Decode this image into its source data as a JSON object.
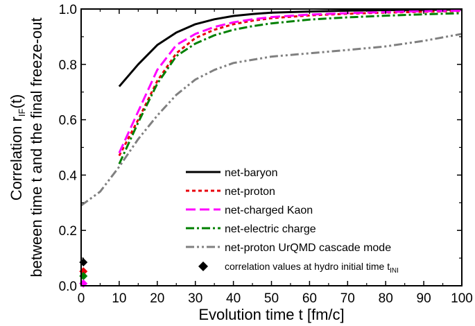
{
  "chart_data": {
    "type": "line",
    "xlabel": "Evolution time t [fm/c]",
    "ylabel_line1": "Correlation r",
    "ylabel_sub": "IF",
    "ylabel_line1_end": "(t)",
    "ylabel_line2": "between time t and the final freeze-out",
    "xlim": [
      0,
      100
    ],
    "ylim": [
      0,
      1.0
    ],
    "xticks": [
      0,
      10,
      20,
      30,
      40,
      50,
      60,
      70,
      80,
      90,
      100
    ],
    "yticks": [
      0.0,
      0.2,
      0.4,
      0.6,
      0.8,
      1.0
    ],
    "xtick_labels": [
      "0",
      "10",
      "20",
      "30",
      "40",
      "50",
      "60",
      "70",
      "80",
      "90",
      "100"
    ],
    "ytick_labels": [
      "0.0",
      "0.2",
      "0.4",
      "0.6",
      "0.8",
      "1.0"
    ],
    "legend_position": "lower-right",
    "series": [
      {
        "name": "net-baryon",
        "color": "#000000",
        "dash": "solid",
        "x": [
          10,
          15,
          20,
          25,
          30,
          35,
          40,
          45,
          50,
          60,
          70,
          80,
          90,
          100
        ],
        "y": [
          0.72,
          0.8,
          0.87,
          0.915,
          0.945,
          0.963,
          0.975,
          0.982,
          0.987,
          0.991,
          0.994,
          0.996,
          0.997,
          0.998
        ]
      },
      {
        "name": "net-proton",
        "color": "#e8000b",
        "dash": "dash",
        "x": [
          10,
          15,
          20,
          25,
          30,
          35,
          40,
          45,
          50,
          60,
          70,
          80,
          90,
          100
        ],
        "y": [
          0.47,
          0.6,
          0.74,
          0.84,
          0.895,
          0.925,
          0.945,
          0.958,
          0.967,
          0.977,
          0.983,
          0.987,
          0.99,
          0.993
        ]
      },
      {
        "name": "net-charged Kaon",
        "color": "#ff00ff",
        "dash": "longdash",
        "x": [
          10,
          15,
          20,
          25,
          30,
          35,
          40,
          45,
          50,
          60,
          70,
          80,
          90,
          100
        ],
        "y": [
          0.48,
          0.63,
          0.78,
          0.87,
          0.91,
          0.935,
          0.952,
          0.963,
          0.971,
          0.98,
          0.985,
          0.989,
          0.992,
          0.994
        ]
      },
      {
        "name": "net-electric charge",
        "color": "#008000",
        "dash": "dashdot",
        "x": [
          10,
          15,
          20,
          25,
          30,
          35,
          40,
          45,
          50,
          60,
          70,
          80,
          90,
          100
        ],
        "y": [
          0.44,
          0.59,
          0.73,
          0.83,
          0.875,
          0.905,
          0.925,
          0.938,
          0.948,
          0.962,
          0.97,
          0.976,
          0.981,
          0.985
        ]
      },
      {
        "name": "net-proton UrQMD cascade mode",
        "color": "#808080",
        "dash": "dashdotdot",
        "x": [
          0,
          5,
          10,
          15,
          20,
          25,
          30,
          35,
          40,
          50,
          60,
          70,
          80,
          90,
          100
        ],
        "y": [
          0.29,
          0.34,
          0.43,
          0.53,
          0.615,
          0.69,
          0.745,
          0.78,
          0.805,
          0.828,
          0.84,
          0.852,
          0.865,
          0.885,
          0.91
        ]
      }
    ],
    "initial_points": {
      "name_prefix": "correlation values at hydro initial time t",
      "name_sub": "INI",
      "x": 0.6,
      "points": [
        {
          "y": 0.085,
          "color": "#000000"
        },
        {
          "y": 0.052,
          "color": "#e8000b"
        },
        {
          "y": 0.035,
          "color": "#008000"
        },
        {
          "y": 0.008,
          "color": "#ff00ff"
        }
      ]
    }
  }
}
